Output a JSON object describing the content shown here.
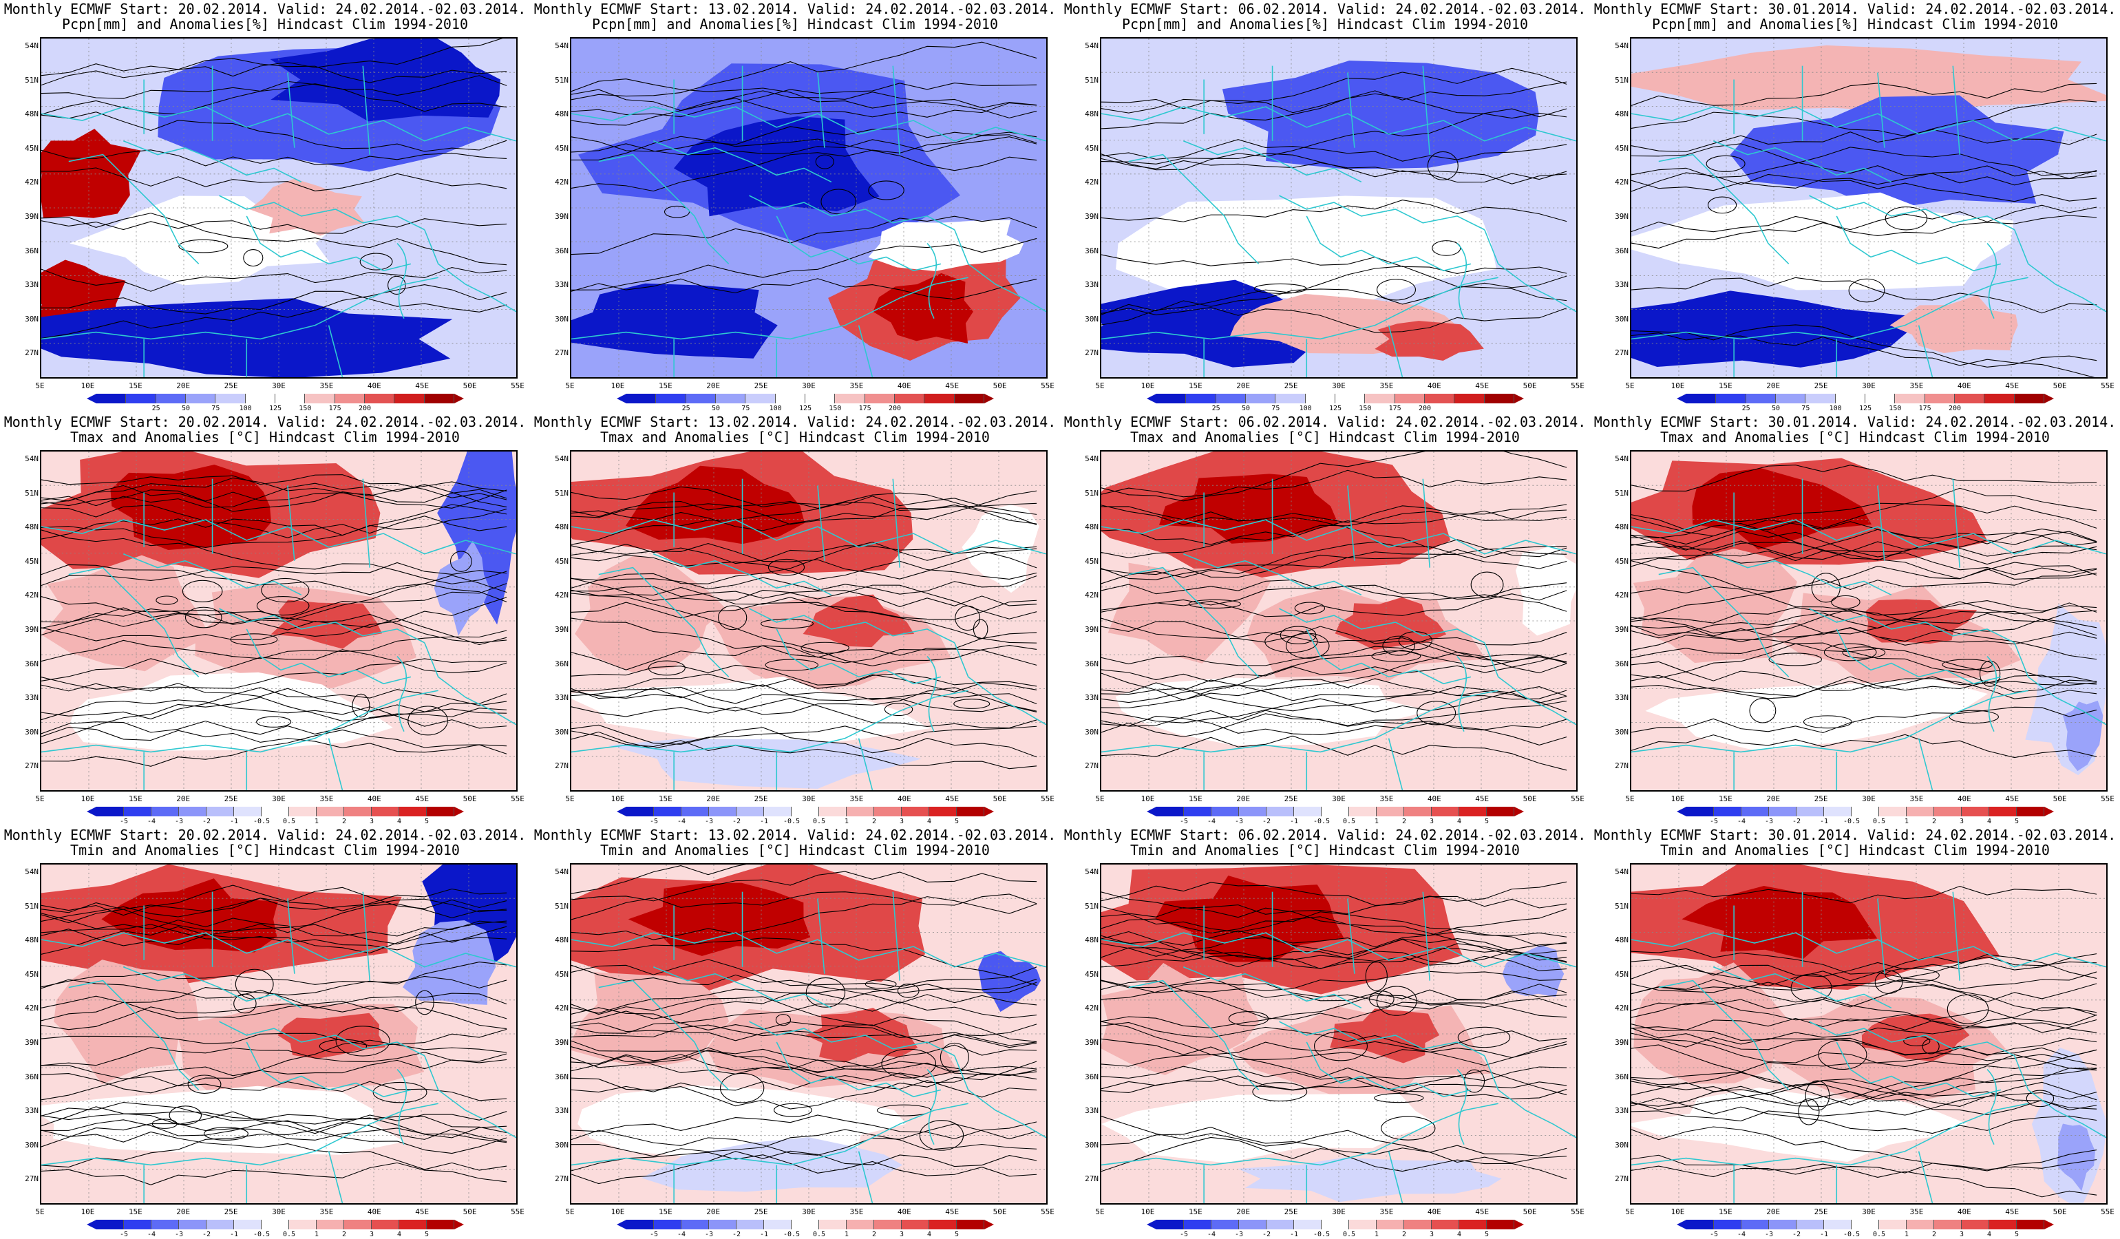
{
  "common": {
    "valid_label": "Valid: 24.02.2014.-02.03.2014.",
    "lat_labels": [
      "54N",
      "51N",
      "48N",
      "45N",
      "42N",
      "39N",
      "36N",
      "33N",
      "30N",
      "27N"
    ],
    "lon_labels": [
      "5E",
      "10E",
      "15E",
      "20E",
      "25E",
      "30E",
      "35E",
      "40E",
      "45E",
      "50E",
      "55E"
    ]
  },
  "rows": [
    {
      "variable": "pcpn",
      "subtitle": "Pcpn[mm] and Anomalies[%] Hindcast Clim 1994-2010",
      "colorbar": {
        "ticks": [
          "25",
          "50",
          "75",
          "100",
          "125",
          "150",
          "175",
          "200"
        ],
        "colors": [
          "#0b17c9",
          "#2f3ef0",
          "#5d6bf6",
          "#9aa3fa",
          "#c9cdfc",
          "#ffffff",
          "#ffffff",
          "#f6c3c3",
          "#f08f8f",
          "#e35252",
          "#d01e1e",
          "#a00000"
        ]
      }
    },
    {
      "variable": "tmax",
      "subtitle": "Tmax and Anomalies [°C] Hindcast Clim 1994-2010",
      "colorbar": {
        "ticks": [
          "-5",
          "-4",
          "-3",
          "-2",
          "-1",
          "-0.5",
          "0.5",
          "1",
          "2",
          "3",
          "4",
          "5"
        ],
        "colors": [
          "#0b17c9",
          "#2f3ef0",
          "#5d6bf6",
          "#8c95f9",
          "#b9bffb",
          "#dfe2fd",
          "#ffffff",
          "#fbdada",
          "#f6b0b0",
          "#ef8181",
          "#e65050",
          "#da2222",
          "#b30000"
        ]
      }
    },
    {
      "variable": "tmin",
      "subtitle": "Tmin and Anomalies [°C] Hindcast Clim 1994-2010",
      "colorbar": {
        "ticks": [
          "-5",
          "-4",
          "-3",
          "-2",
          "-1",
          "-0.5",
          "0.5",
          "1",
          "2",
          "3",
          "4",
          "5"
        ],
        "colors": [
          "#0b17c9",
          "#2f3ef0",
          "#5d6bf6",
          "#8c95f9",
          "#b9bffb",
          "#dfe2fd",
          "#ffffff",
          "#fbdada",
          "#f6b0b0",
          "#ef8181",
          "#e65050",
          "#da2222",
          "#b30000"
        ]
      }
    }
  ],
  "columns": [
    {
      "title": "Monthly ECMWF Start: 20.02.2014. Valid: 24.02.2014.-02.03.2014."
    },
    {
      "title": "Monthly ECMWF Start: 13.02.2014. Valid: 24.02.2014.-02.03.2014."
    },
    {
      "title": "Monthly ECMWF Start: 06.02.2014. Valid: 24.02.2014.-02.03.2014."
    },
    {
      "title": "Monthly ECMWF Start: 30.01.2014. Valid: 24.02.2014.-02.03.2014."
    }
  ],
  "palette": {
    "land_border": "#2ec8d0",
    "contour": "#000000",
    "deep_red": "#c00000",
    "red": "#e04848",
    "light_red": "#f4b4b4",
    "pale_red": "#fbdcdc",
    "white": "#ffffff",
    "pale_blue": "#d3d7fc",
    "light_blue": "#9aa3fa",
    "blue": "#4b58f2",
    "deep_blue": "#0b17c9"
  }
}
